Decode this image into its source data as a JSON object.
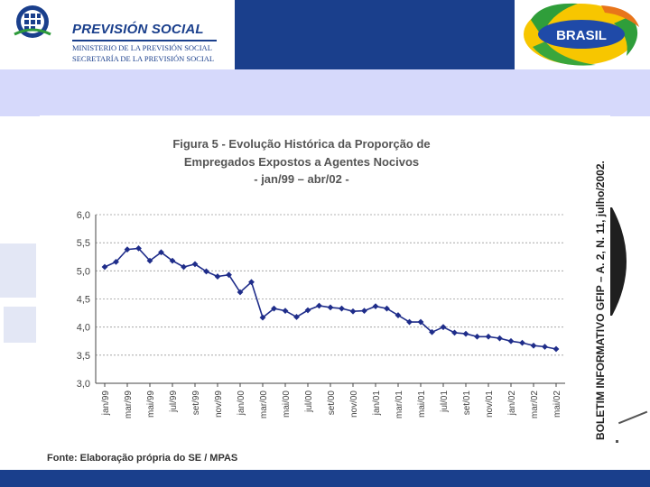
{
  "header": {
    "brand_title": "PREVISIÓN SOCIAL",
    "brand_line1": "MINISTERIO DE LA PREVISIÓN  SOCIAL",
    "brand_line2": "SECRETARÍA DE LA PREVISIÓN SOCIAL",
    "brasil_label": "BRASIL"
  },
  "chart_data": {
    "type": "line",
    "title_lines": [
      "Figura 5 - Evolução Histórica da Proporção de",
      "Empregados Expostos a Agentes Nocivos",
      "- jan/99 – abr/02 -"
    ],
    "ylim": [
      3.0,
      6.0
    ],
    "yticks": [
      "3,0",
      "3,5",
      "4,0",
      "4,5",
      "5,0",
      "5,5",
      "6,0"
    ],
    "xtick_labels": [
      "jan/99",
      "mar/99",
      "mai/99",
      "jul/99",
      "set/99",
      "nov/99",
      "jan/00",
      "mar/00",
      "mai/00",
      "jul/00",
      "set/00",
      "nov/00",
      "jan/01",
      "mar/01",
      "mai/01",
      "jul/01",
      "set/01",
      "nov/01",
      "jan/02",
      "mar/02",
      "mai/02"
    ],
    "values": [
      5.07,
      5.16,
      5.38,
      5.4,
      5.18,
      5.33,
      5.18,
      5.07,
      5.12,
      4.99,
      4.9,
      4.93,
      4.62,
      4.8,
      4.17,
      4.33,
      4.29,
      4.18,
      4.3,
      4.38,
      4.35,
      4.33,
      4.28,
      4.29,
      4.37,
      4.33,
      4.21,
      4.09,
      4.09,
      3.91,
      4.0,
      3.9,
      3.88,
      3.83,
      3.83,
      3.8,
      3.75,
      3.72,
      3.67,
      3.65,
      3.61
    ],
    "color": "#1f2d8a",
    "source": "Fonte: Elaboração própria do SE / MPAS",
    "side_caption": "BOLETIM INFORMATIVO GFIP – A. 2, N. 11, julho/2002."
  }
}
